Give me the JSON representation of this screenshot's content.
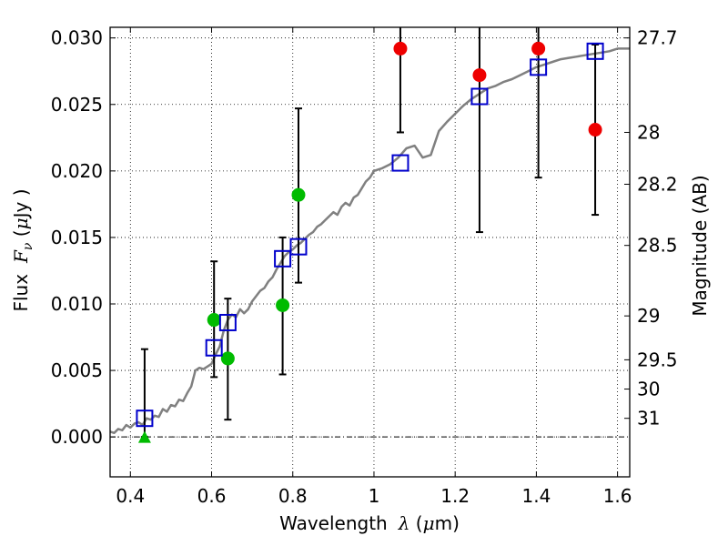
{
  "chart_data": {
    "type": "scatter",
    "xlabel": "Wavelength",
    "xlabel_symbol": "λ",
    "xlabel_unit_open": " (",
    "xlabel_unit_mu": "μ",
    "xlabel_unit_rest": "m)",
    "ylabel": "Flux",
    "ylabel_symbol": "F",
    "ylabel_symbol_sub": "ν",
    "ylabel_unit_open": " (",
    "ylabel_unit_mu": "μ",
    "ylabel_unit_rest": "Jy )",
    "y2label": "Magnitude (AB)",
    "xlim": [
      0.35,
      1.63
    ],
    "ylim": [
      -0.003,
      0.0308
    ],
    "grid": true,
    "x_ticks": [
      {
        "value": 0.4,
        "label": "0.4"
      },
      {
        "value": 0.6,
        "label": "0.6"
      },
      {
        "value": 0.8,
        "label": "0.8"
      },
      {
        "value": 1.0,
        "label": "1"
      },
      {
        "value": 1.2,
        "label": "1.2"
      },
      {
        "value": 1.4,
        "label": "1.4"
      },
      {
        "value": 1.6,
        "label": "1.6"
      }
    ],
    "y_ticks": [
      {
        "value": 0.0,
        "label": "0.000"
      },
      {
        "value": 0.005,
        "label": "0.005"
      },
      {
        "value": 0.01,
        "label": "0.010"
      },
      {
        "value": 0.015,
        "label": "0.015"
      },
      {
        "value": 0.02,
        "label": "0.020"
      },
      {
        "value": 0.025,
        "label": "0.025"
      },
      {
        "value": 0.03,
        "label": "0.030"
      }
    ],
    "y2_ticks": [
      {
        "label": "27.7",
        "flux": 0.03
      },
      {
        "label": "28",
        "flux": 0.0229
      },
      {
        "label": "28.2",
        "flux": 0.019
      },
      {
        "label": "28.5",
        "flux": 0.0144
      },
      {
        "label": "29",
        "flux": 0.0091
      },
      {
        "label": "29.5",
        "flux": 0.0058
      },
      {
        "label": "30",
        "flux": 0.0036
      },
      {
        "label": "31",
        "flux": 0.0014
      }
    ],
    "sed_model": {
      "color": "#808080",
      "points": [
        [
          0.35,
          0.0004
        ],
        [
          0.36,
          0.0003
        ],
        [
          0.37,
          0.0006
        ],
        [
          0.38,
          0.0005
        ],
        [
          0.39,
          0.0009
        ],
        [
          0.4,
          0.0007
        ],
        [
          0.41,
          0.001
        ],
        [
          0.42,
          0.0011
        ],
        [
          0.43,
          0.0009
        ],
        [
          0.44,
          0.0014
        ],
        [
          0.45,
          0.0013
        ],
        [
          0.46,
          0.0016
        ],
        [
          0.47,
          0.0015
        ],
        [
          0.48,
          0.0021
        ],
        [
          0.49,
          0.0019
        ],
        [
          0.5,
          0.0024
        ],
        [
          0.51,
          0.0023
        ],
        [
          0.52,
          0.0028
        ],
        [
          0.53,
          0.0027
        ],
        [
          0.54,
          0.0033
        ],
        [
          0.55,
          0.0038
        ],
        [
          0.56,
          0.005
        ],
        [
          0.57,
          0.0052
        ],
        [
          0.58,
          0.0051
        ],
        [
          0.59,
          0.0053
        ],
        [
          0.6,
          0.0055
        ],
        [
          0.61,
          0.0062
        ],
        [
          0.62,
          0.0068
        ],
        [
          0.63,
          0.008
        ],
        [
          0.64,
          0.0088
        ],
        [
          0.65,
          0.0092
        ],
        [
          0.66,
          0.009
        ],
        [
          0.67,
          0.0096
        ],
        [
          0.68,
          0.0093
        ],
        [
          0.69,
          0.0096
        ],
        [
          0.7,
          0.0102
        ],
        [
          0.71,
          0.0106
        ],
        [
          0.72,
          0.011
        ],
        [
          0.73,
          0.0112
        ],
        [
          0.74,
          0.0117
        ],
        [
          0.75,
          0.012
        ],
        [
          0.76,
          0.0126
        ],
        [
          0.77,
          0.0131
        ],
        [
          0.78,
          0.0136
        ],
        [
          0.79,
          0.0139
        ],
        [
          0.8,
          0.0141
        ],
        [
          0.81,
          0.0144
        ],
        [
          0.82,
          0.0146
        ],
        [
          0.83,
          0.0149
        ],
        [
          0.84,
          0.0152
        ],
        [
          0.85,
          0.0154
        ],
        [
          0.86,
          0.0158
        ],
        [
          0.87,
          0.016
        ],
        [
          0.88,
          0.0163
        ],
        [
          0.89,
          0.0166
        ],
        [
          0.9,
          0.0169
        ],
        [
          0.91,
          0.0167
        ],
        [
          0.92,
          0.0173
        ],
        [
          0.93,
          0.0176
        ],
        [
          0.94,
          0.0174
        ],
        [
          0.95,
          0.018
        ],
        [
          0.96,
          0.0182
        ],
        [
          0.97,
          0.0187
        ],
        [
          0.98,
          0.0192
        ],
        [
          0.99,
          0.0195
        ],
        [
          1.0,
          0.02
        ],
        [
          1.02,
          0.0202
        ],
        [
          1.04,
          0.0205
        ],
        [
          1.06,
          0.021
        ],
        [
          1.08,
          0.0217
        ],
        [
          1.1,
          0.0219
        ],
        [
          1.12,
          0.021
        ],
        [
          1.14,
          0.0212
        ],
        [
          1.16,
          0.023
        ],
        [
          1.18,
          0.0237
        ],
        [
          1.2,
          0.0243
        ],
        [
          1.22,
          0.0249
        ],
        [
          1.24,
          0.0254
        ],
        [
          1.26,
          0.0258
        ],
        [
          1.28,
          0.0262
        ],
        [
          1.3,
          0.0264
        ],
        [
          1.32,
          0.0267
        ],
        [
          1.34,
          0.0269
        ],
        [
          1.36,
          0.0272
        ],
        [
          1.38,
          0.0275
        ],
        [
          1.4,
          0.0278
        ],
        [
          1.42,
          0.028
        ],
        [
          1.44,
          0.0282
        ],
        [
          1.46,
          0.0284
        ],
        [
          1.48,
          0.0285
        ],
        [
          1.5,
          0.0286
        ],
        [
          1.52,
          0.0287
        ],
        [
          1.54,
          0.0288
        ],
        [
          1.56,
          0.0289
        ],
        [
          1.58,
          0.029
        ],
        [
          1.6,
          0.0292
        ],
        [
          1.63,
          0.0292
        ]
      ]
    },
    "model_photometry": {
      "marker": "open-square",
      "color": "#0000cc",
      "points": [
        [
          0.435,
          0.0014
        ],
        [
          0.606,
          0.0067
        ],
        [
          0.64,
          0.0086
        ],
        [
          0.775,
          0.0134
        ],
        [
          0.814,
          0.0143
        ],
        [
          1.065,
          0.0206
        ],
        [
          1.26,
          0.0256
        ],
        [
          1.405,
          0.0278
        ],
        [
          1.545,
          0.029
        ]
      ]
    },
    "observed_detections": {
      "marker": "filled-circle",
      "color": "#00bb00",
      "points": [
        [
          0.606,
          0.0088
        ],
        [
          0.64,
          0.0059
        ],
        [
          0.775,
          0.0099
        ],
        [
          0.814,
          0.0182
        ]
      ]
    },
    "observed_upper_limits": {
      "marker": "filled-triangle",
      "color": "#00bb00",
      "points": [
        [
          0.435,
          -0.0001
        ]
      ]
    },
    "observed_low_sn": {
      "marker": "filled-circle",
      "color": "#ee0000",
      "points": [
        [
          1.065,
          0.0292
        ],
        [
          1.26,
          0.0272
        ],
        [
          1.405,
          0.0292
        ],
        [
          1.545,
          0.0231
        ]
      ]
    },
    "error_bars": [
      {
        "x": 0.435,
        "low": 0.0,
        "high": 0.0066
      },
      {
        "x": 0.606,
        "low": 0.0045,
        "high": 0.0132
      },
      {
        "x": 0.64,
        "low": 0.0013,
        "high": 0.0104
      },
      {
        "x": 0.775,
        "low": 0.0047,
        "high": 0.015
      },
      {
        "x": 0.814,
        "low": 0.0116,
        "high": 0.0247
      },
      {
        "x": 1.065,
        "low": 0.0229,
        "high": 0.032
      },
      {
        "x": 1.26,
        "low": 0.0154,
        "high": 0.032
      },
      {
        "x": 1.405,
        "low": 0.0195,
        "high": 0.032
      },
      {
        "x": 1.545,
        "low": 0.0167,
        "high": 0.0295
      }
    ]
  }
}
